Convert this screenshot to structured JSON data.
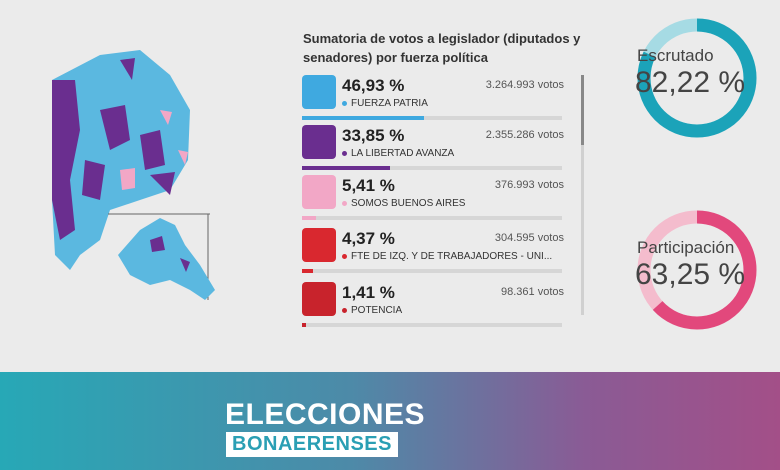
{
  "title": "Sumatoria de votos a legislador (diputados y senadores) por fuerza política",
  "parties": [
    {
      "name": "FUERZA PATRIA",
      "percent": 46.93,
      "percent_label": "46,93 %",
      "votes": "3.264.993 votos",
      "color": "#3fa9e0"
    },
    {
      "name": "LA LIBERTAD AVANZA",
      "percent": 33.85,
      "percent_label": "33,85 %",
      "votes": "2.355.286 votos",
      "color": "#6a2e8f"
    },
    {
      "name": "SOMOS BUENOS AIRES",
      "percent": 5.41,
      "percent_label": "5,41 %",
      "votes": "376.993 votos",
      "color": "#f2a7c6"
    },
    {
      "name": "FTE DE IZQ. Y DE TRABAJADORES - UNI...",
      "percent": 4.37,
      "percent_label": "4,37 %",
      "votes": "304.595 votos",
      "color": "#d9282f"
    },
    {
      "name": "POTENCIA",
      "percent": 1.41,
      "percent_label": "1,41 %",
      "votes": "98.361 votos",
      "color": "#c8232c"
    }
  ],
  "gauges": [
    {
      "label": "Escrutado",
      "value": 82.22,
      "value_label": "82,22 %",
      "color": "#1ba3b9",
      "track": "#a6dbe4"
    },
    {
      "label": "Participación",
      "value": 63.25,
      "value_label": "63,25 %",
      "color": "#e2487c",
      "track": "#f4bccd"
    }
  ],
  "banner": {
    "line1": "ELECCIONES",
    "line2": "BONAERENSES"
  }
}
